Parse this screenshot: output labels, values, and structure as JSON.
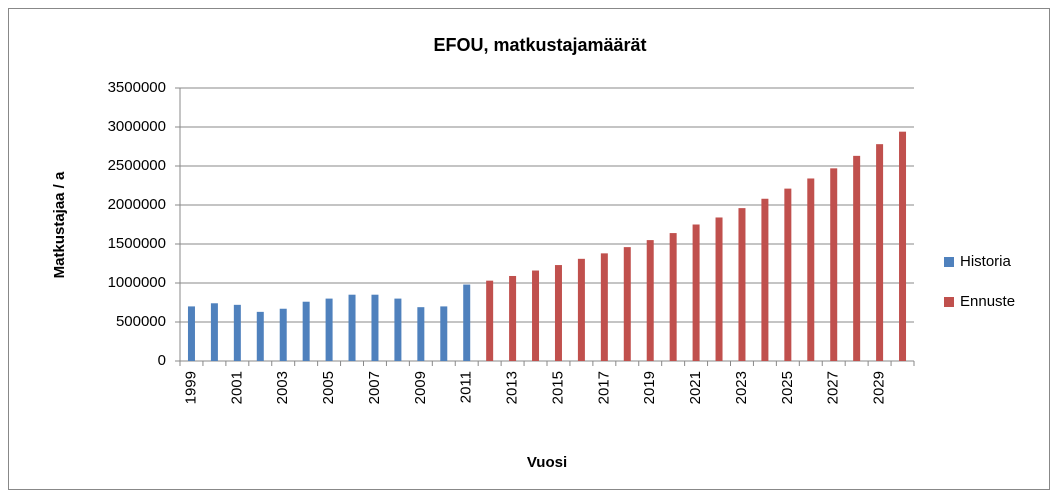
{
  "chart_data": {
    "type": "bar",
    "title": "EFOU, matkustajamäärät",
    "x_label": "Vuosi",
    "y_label": "Matkustajaa  / a",
    "categories": [
      "1999",
      null,
      "2001",
      null,
      "2003",
      null,
      "2005",
      null,
      "2007",
      null,
      "2009",
      null,
      "2011",
      null,
      "2013",
      null,
      "2015",
      null,
      "2017",
      null,
      "2019",
      null,
      "2021",
      null,
      "2023",
      null,
      "2025",
      null,
      "2027",
      null,
      "2029",
      null
    ],
    "series": [
      {
        "name": "Historia",
        "color": "#4f81bd",
        "values": [
          700000,
          740000,
          720000,
          630000,
          670000,
          760000,
          800000,
          850000,
          850000,
          800000,
          690000,
          700000,
          980000,
          null,
          null,
          null,
          null,
          null,
          null,
          null,
          null,
          null,
          null,
          null,
          null,
          null,
          null,
          null,
          null,
          null,
          null,
          null
        ]
      },
      {
        "name": "Ennuste",
        "color": "#c0504d",
        "values": [
          null,
          null,
          null,
          null,
          null,
          null,
          null,
          null,
          null,
          null,
          null,
          null,
          null,
          1030000,
          1090000,
          1160000,
          1230000,
          1310000,
          1380000,
          1460000,
          1550000,
          1640000,
          1750000,
          1840000,
          1960000,
          2080000,
          2210000,
          2340000,
          2470000,
          2630000,
          2780000,
          2940000
        ]
      }
    ],
    "ylim": [
      0,
      3500000
    ],
    "yticks": [
      0,
      500000,
      1000000,
      1500000,
      2000000,
      2500000,
      3000000,
      3500000
    ],
    "grid": true,
    "legend": "right"
  }
}
